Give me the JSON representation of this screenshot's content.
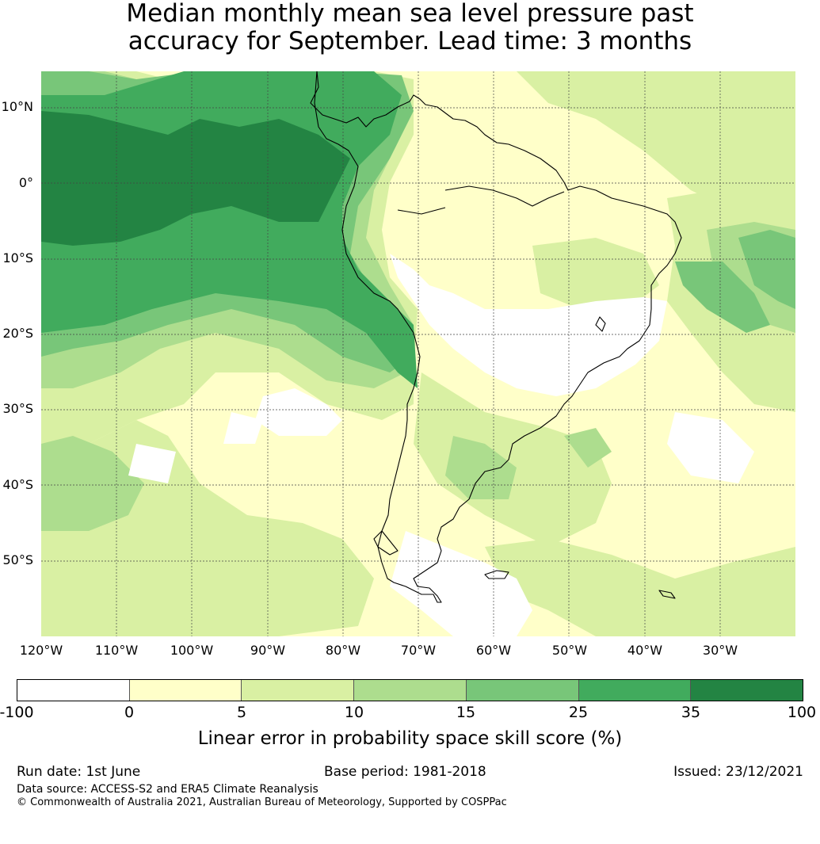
{
  "title_line1": "Median monthly mean sea level pressure past",
  "title_line2": "accuracy for September. Lead time: 3 months",
  "map": {
    "lat_labels": [
      "10°N",
      "0°",
      "10°S",
      "20°S",
      "30°S",
      "40°S",
      "50°S"
    ],
    "lon_labels": [
      "120°W",
      "110°W",
      "100°W",
      "90°W",
      "80°W",
      "70°W",
      "60°W",
      "50°W",
      "40°W",
      "30°W"
    ],
    "colors": {
      "neg": "#ffffff",
      "c0_5": "#ffffc9",
      "c5_10": "#d9f0a3",
      "c10_15": "#addd8e",
      "c15_25": "#78c679",
      "c25_35": "#41ab5d",
      "c35_100": "#238443",
      "coast": "#000000",
      "grid": "#444444"
    }
  },
  "colorbar": {
    "ticks": [
      "-100",
      "0",
      "5",
      "10",
      "15",
      "25",
      "35",
      "100"
    ],
    "colors": [
      "#ffffff",
      "#ffffc9",
      "#d9f0a3",
      "#addd8e",
      "#78c679",
      "#41ab5d",
      "#238443"
    ],
    "label": "Linear error in probability space skill score (%)"
  },
  "footer": {
    "run_date": "Run date: 1st June",
    "base_period": "Base period: 1981-2018",
    "issued": "Issued: 23/12/2021",
    "data_source": "Data source: ACCESS-S2 and ERA5 Climate Reanalysis",
    "copyright": "© Commonwealth of Australia 2021, Australian Bureau of Meteorology, Supported by COSPPac"
  }
}
